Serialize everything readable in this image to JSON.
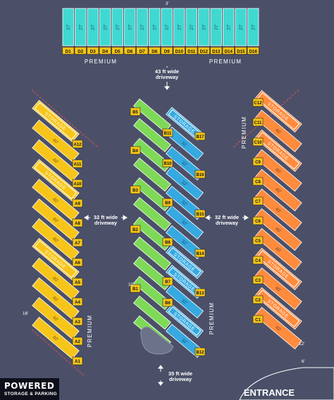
{
  "colors": {
    "background": "#4b5068",
    "premium_spot": "#3fd9d2",
    "label_fill": "#f5c518",
    "yellow_spot": "#f7c51a",
    "green_spot": "#7ed957",
    "blue_spot": "#36a9e1",
    "orange_spot": "#ff8b3d",
    "boundary": "#e35050"
  },
  "premium_row": {
    "size_label": "27'",
    "spots": [
      "D1",
      "D2",
      "D3",
      "D4",
      "D5",
      "D6",
      "D7",
      "D8",
      "D9",
      "D10",
      "D11",
      "D12",
      "D13",
      "D14",
      "D15",
      "D16"
    ],
    "gap_label": "3'",
    "premium_left": "PREMIUM",
    "premium_right": "PREMIUM"
  },
  "labels": {
    "driveway_top_line1": "43 ft wide",
    "driveway_top_line2": "driveway",
    "driveway_left_line1": "32 ft wide",
    "driveway_left_line2": "driveway",
    "driveway_right_line1": "32 ft wide",
    "driveway_right_line2": "driveway",
    "driveway_bottom_line1": "35 ft wide",
    "driveway_bottom_line2": "driveway",
    "premium_left_col": "PREMIUM",
    "premium_mid": "PREMIUM",
    "premium_right_col": "PREMIUM",
    "entrance": "ENTRANCE",
    "dim_16": "16'",
    "dim_12": "12'",
    "dim_6": "6'",
    "dim_10": "10'"
  },
  "column_a": {
    "spots": [
      "A1",
      "A2",
      "A3",
      "A4",
      "A5",
      "A6",
      "A7",
      "A8",
      "A9",
      "A10",
      "A11",
      "A12"
    ],
    "size_label": "40'",
    "storage_label": "STORAGE"
  },
  "column_b": {
    "spots": [
      "B1",
      "B2",
      "B3",
      "B4",
      "B5"
    ],
    "size_label": "32'",
    "storage_label": "STORAGE"
  },
  "column_b2": {
    "spots": [
      "B6",
      "B7",
      "B8",
      "B9",
      "B10",
      "B11",
      "B12",
      "B13",
      "B14",
      "B15",
      "B16",
      "B17"
    ],
    "size_label": "32'",
    "storage_label": "STORAGE"
  },
  "column_c": {
    "spots": [
      "C1",
      "C2",
      "C3",
      "C4",
      "C5",
      "C6",
      "C7",
      "C8",
      "C9",
      "C10",
      "C11",
      "C12"
    ],
    "size_label": "40'",
    "storage_label": "STORAGE"
  },
  "brand": {
    "line1": "POWERED",
    "line2": "STORAGE & PARKING"
  }
}
